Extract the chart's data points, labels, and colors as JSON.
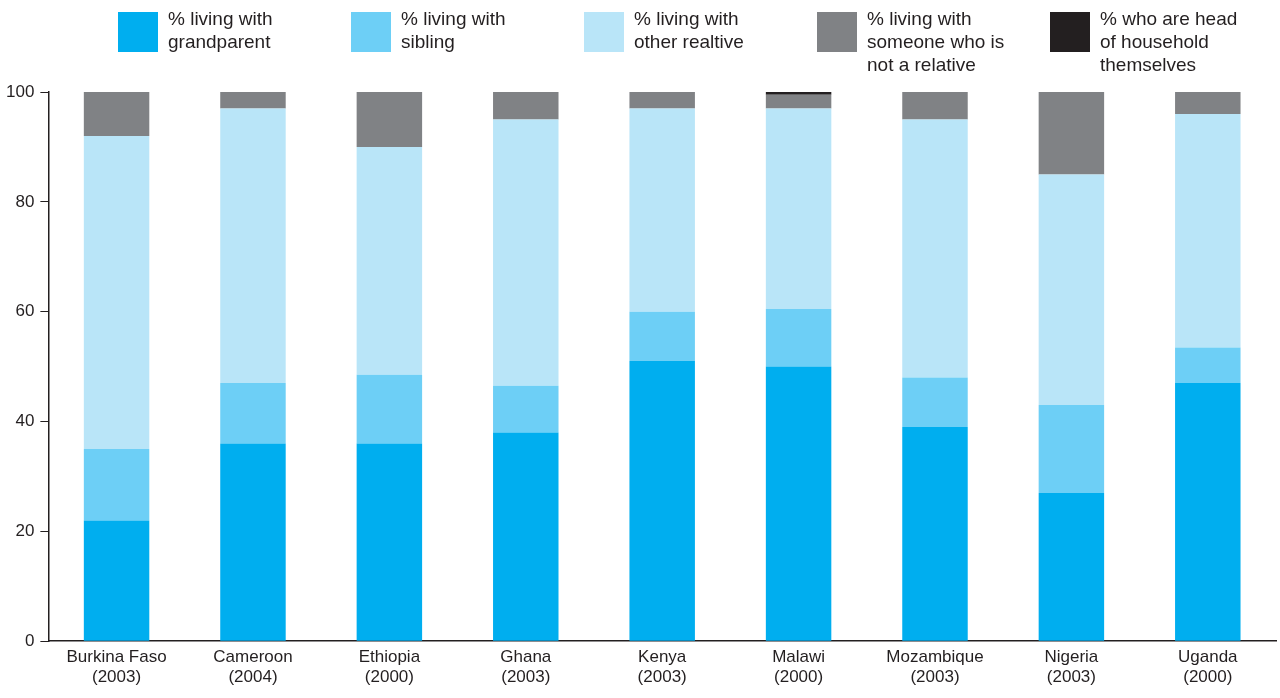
{
  "chart_data": {
    "type": "bar",
    "stacked": true,
    "categories": [
      "Burkina Faso\n(2003)",
      "Cameroon\n(2004)",
      "Ethiopia\n(2000)",
      "Ghana\n(2003)",
      "Kenya\n(2003)",
      "Malawi\n(2000)",
      "Mozambique\n(2003)",
      "Nigeria\n(2003)",
      "Uganda\n(2000)"
    ],
    "series": [
      {
        "name": "% living with grandparent",
        "color": "#00aeef",
        "values": [
          22,
          36,
          36,
          38,
          51,
          50,
          39,
          27,
          47
        ]
      },
      {
        "name": "% living with sibling",
        "color": "#6dcff6",
        "values": [
          13,
          11,
          12.5,
          8.5,
          9,
          10.5,
          9,
          16,
          6.5
        ]
      },
      {
        "name": "% living with other realtive",
        "color": "#b9e5f8",
        "values": [
          57,
          50,
          41.5,
          48.5,
          37,
          36.5,
          47,
          42,
          42.5
        ]
      },
      {
        "name": "% living with someone who is not a relative",
        "color": "#808285",
        "values": [
          8,
          3,
          10,
          5,
          3,
          2.5,
          5,
          15,
          4
        ]
      },
      {
        "name": "% who are head of household themselves",
        "color": "#231f20",
        "values": [
          0,
          0,
          0,
          0,
          0,
          0.5,
          0,
          0,
          0
        ]
      }
    ],
    "ylim": [
      0,
      100
    ],
    "yticks": [
      0,
      20,
      40,
      60,
      80,
      100
    ],
    "grid": false,
    "legend": "top"
  }
}
